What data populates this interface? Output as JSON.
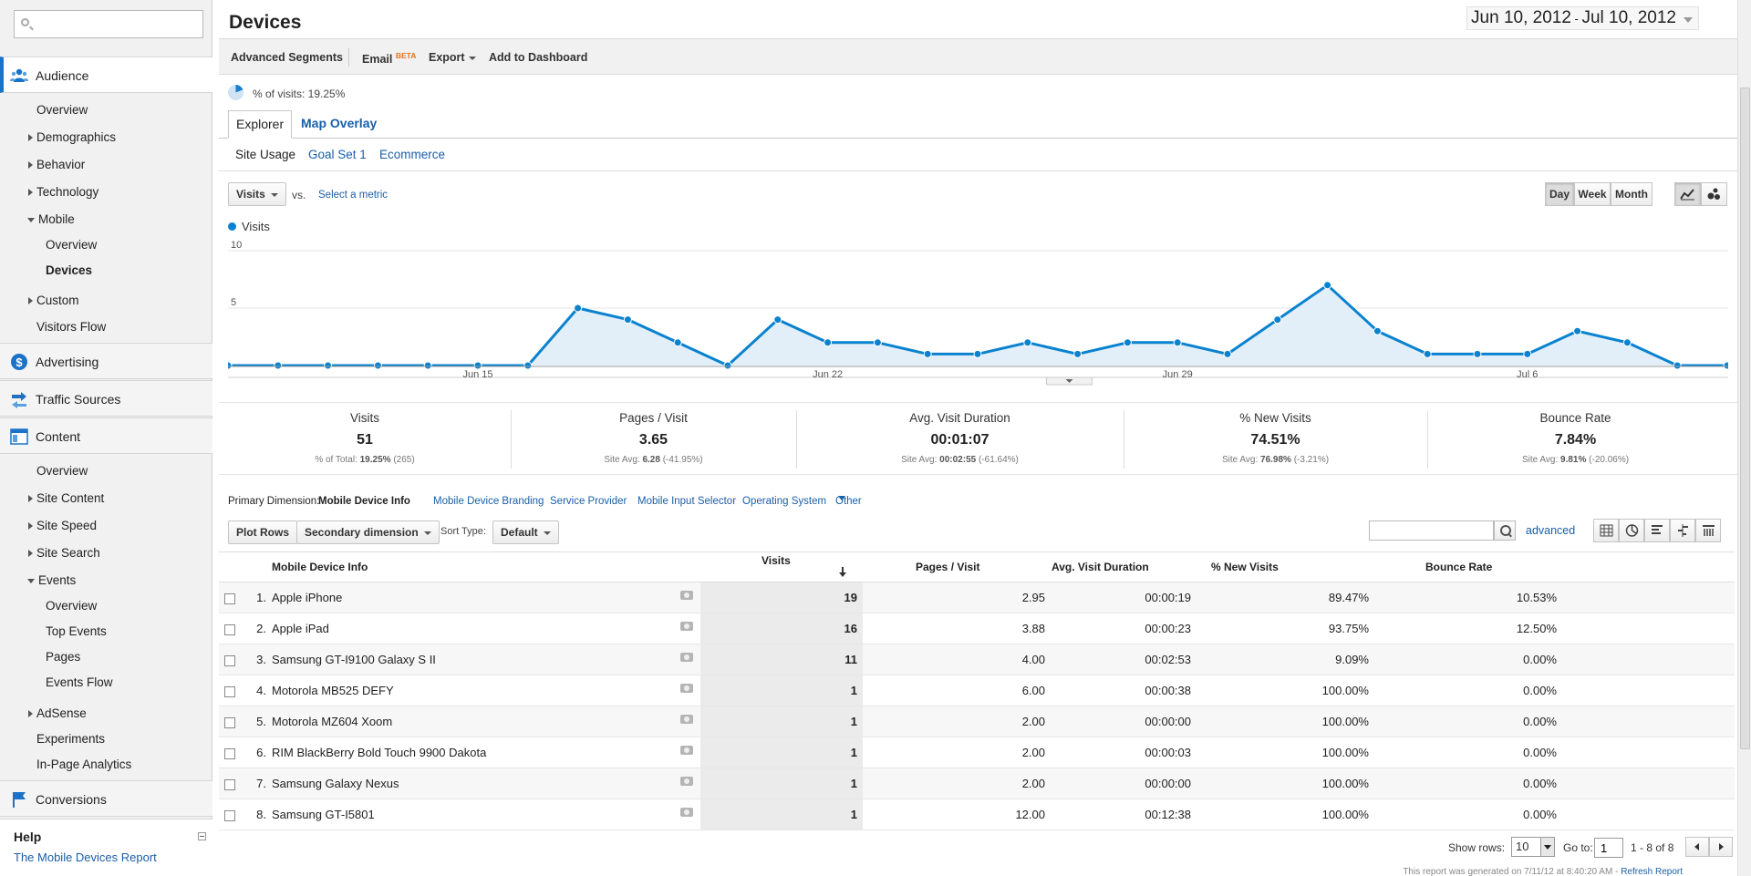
{
  "sidebar": {
    "search_placeholder": "",
    "sections": {
      "audience": "Audience",
      "advertising": "Advertising",
      "traffic_sources": "Traffic Sources",
      "content": "Content",
      "conversions": "Conversions"
    },
    "audience_items": {
      "overview": "Overview",
      "demographics": "Demographics",
      "behavior": "Behavior",
      "technology": "Technology",
      "mobile": "Mobile",
      "mobile_overview": "Overview",
      "devices": "Devices",
      "custom": "Custom",
      "visitors_flow": "Visitors Flow"
    },
    "content_items": {
      "overview": "Overview",
      "site_content": "Site Content",
      "site_speed": "Site Speed",
      "site_search": "Site Search",
      "events": "Events",
      "events_overview": "Overview",
      "top_events": "Top Events",
      "pages": "Pages",
      "events_flow": "Events Flow",
      "adsense": "AdSense",
      "experiments": "Experiments",
      "in_page_analytics": "In-Page Analytics"
    },
    "help": {
      "title": "Help",
      "link": "The Mobile Devices Report"
    }
  },
  "header": {
    "title": "Devices",
    "date_start": "Jun 10, 2012",
    "date_sep": " - ",
    "date_end": "Jul 10, 2012"
  },
  "toolbar": {
    "advanced_segments": "Advanced Segments",
    "email": "Email",
    "email_badge": "BETA",
    "export": "Export",
    "add_to_dashboard": "Add to Dashboard"
  },
  "segment": {
    "text": "% of visits: 19.25%"
  },
  "tabs": {
    "explorer": "Explorer",
    "map_overlay": "Map Overlay"
  },
  "subtabs": {
    "site_usage": "Site Usage",
    "goal_set": "Goal Set 1",
    "ecommerce": "Ecommerce"
  },
  "chart_controls": {
    "metric": "Visits",
    "vs": "vs.",
    "select_metric": "Select a metric",
    "day": "Day",
    "week": "Week",
    "month": "Month"
  },
  "chart_data": {
    "type": "line",
    "series": [
      {
        "name": "Visits",
        "values": [
          0,
          0,
          0,
          0,
          0,
          0,
          0,
          5,
          4,
          2,
          0,
          4,
          2,
          2,
          1,
          1,
          2,
          1,
          2,
          2,
          1,
          4,
          7,
          3,
          1,
          1,
          1,
          3,
          2,
          0,
          0
        ]
      }
    ],
    "x": [
      "Jun 10",
      "Jun 11",
      "Jun 12",
      "Jun 13",
      "Jun 14",
      "Jun 15",
      "Jun 16",
      "Jun 17",
      "Jun 18",
      "Jun 19",
      "Jun 20",
      "Jun 21",
      "Jun 22",
      "Jun 23",
      "Jun 24",
      "Jun 25",
      "Jun 26",
      "Jun 27",
      "Jun 28",
      "Jun 29",
      "Jun 30",
      "Jul 1",
      "Jul 2",
      "Jul 3",
      "Jul 4",
      "Jul 5",
      "Jul 6",
      "Jul 7",
      "Jul 8",
      "Jul 9",
      "Jul 10"
    ],
    "x_tick_labels": [
      "Jun 15",
      "Jun 22",
      "Jun 29",
      "Jul 6"
    ],
    "y_tick_labels": [
      "10",
      "5"
    ],
    "ylim": [
      0,
      10
    ],
    "color": "#0a82cf",
    "fill_color": "#e3eff8",
    "legend_placement": "top-left",
    "grid": true
  },
  "scorecards": [
    {
      "label": "Visits",
      "value": "51",
      "sub_prefix": "% of Total: ",
      "sub_bold": "19.25%",
      "sub_suffix": " (265)"
    },
    {
      "label": "Pages / Visit",
      "value": "3.65",
      "sub_prefix": "Site Avg: ",
      "sub_bold": "6.28",
      "sub_suffix": " (-41.95%)"
    },
    {
      "label": "Avg. Visit Duration",
      "value": "00:01:07",
      "sub_prefix": "Site Avg: ",
      "sub_bold": "00:02:55",
      "sub_suffix": " (-61.64%)"
    },
    {
      "label": "% New Visits",
      "value": "74.51%",
      "sub_prefix": "Site Avg: ",
      "sub_bold": "76.98%",
      "sub_suffix": " (-3.21%)"
    },
    {
      "label": "Bounce Rate",
      "value": "7.84%",
      "sub_prefix": "Site Avg: ",
      "sub_bold": "9.81%",
      "sub_suffix": " (-20.06%)"
    }
  ],
  "dimensions": {
    "label": "Primary Dimension:",
    "selected": "Mobile Device Info",
    "links": [
      "Mobile Device Branding",
      "Service Provider",
      "Mobile Input Selector",
      "Operating System",
      "Other"
    ]
  },
  "table_controls": {
    "plot_rows": "Plot Rows",
    "secondary_dimension": "Secondary dimension",
    "sort_type_label": "Sort Type:",
    "sort_type_value": "Default",
    "search_placeholder": "",
    "advanced": "advanced"
  },
  "table": {
    "columns": [
      "Mobile Device Info",
      "Visits",
      "Pages / Visit",
      "Avg. Visit Duration",
      "% New Visits",
      "Bounce Rate"
    ],
    "rows": [
      {
        "n": "1.",
        "device": "Apple iPhone",
        "visits": "19",
        "ppv": "2.95",
        "duration": "00:00:19",
        "new_visits": "89.47%",
        "bounce": "10.53%"
      },
      {
        "n": "2.",
        "device": "Apple iPad",
        "visits": "16",
        "ppv": "3.88",
        "duration": "00:00:23",
        "new_visits": "93.75%",
        "bounce": "12.50%"
      },
      {
        "n": "3.",
        "device": "Samsung GT-I9100 Galaxy S II",
        "visits": "11",
        "ppv": "4.00",
        "duration": "00:02:53",
        "new_visits": "9.09%",
        "bounce": "0.00%"
      },
      {
        "n": "4.",
        "device": "Motorola MB525 DEFY",
        "visits": "1",
        "ppv": "6.00",
        "duration": "00:00:38",
        "new_visits": "100.00%",
        "bounce": "0.00%"
      },
      {
        "n": "5.",
        "device": "Motorola MZ604 Xoom",
        "visits": "1",
        "ppv": "2.00",
        "duration": "00:00:00",
        "new_visits": "100.00%",
        "bounce": "0.00%"
      },
      {
        "n": "6.",
        "device": "RIM BlackBerry Bold Touch 9900 Dakota",
        "visits": "1",
        "ppv": "2.00",
        "duration": "00:00:03",
        "new_visits": "100.00%",
        "bounce": "0.00%"
      },
      {
        "n": "7.",
        "device": "Samsung Galaxy Nexus",
        "visits": "1",
        "ppv": "2.00",
        "duration": "00:00:00",
        "new_visits": "100.00%",
        "bounce": "0.00%"
      },
      {
        "n": "8.",
        "device": "Samsung GT-I5801",
        "visits": "1",
        "ppv": "12.00",
        "duration": "00:12:38",
        "new_visits": "100.00%",
        "bounce": "0.00%"
      }
    ]
  },
  "pager": {
    "show_rows_label": "Show rows:",
    "show_rows_value": "10",
    "goto_label": "Go to:",
    "goto_value": "1",
    "range": "1 - 8 of 8"
  },
  "footer": {
    "note": "This report was generated on 7/11/12 at 8:40:20 AM - ",
    "refresh": "Refresh Report"
  },
  "colors": {
    "accent": "#1a73c8",
    "link": "#1a5ea8",
    "beta": "#e8721c"
  }
}
